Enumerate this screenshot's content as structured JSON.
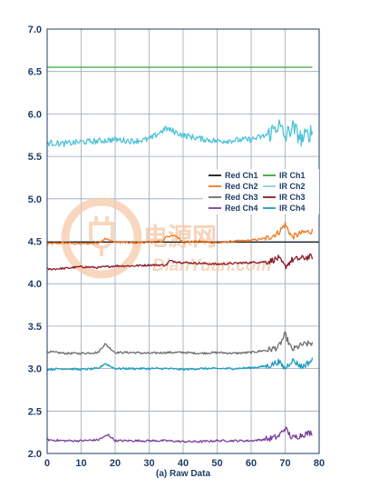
{
  "chart_data": {
    "type": "line",
    "title": "",
    "xlabel": "(a) Raw Data",
    "ylabel": "",
    "xlim": [
      0,
      80
    ],
    "ylim": [
      2.0,
      7.0
    ],
    "x_ticks": [
      "0",
      "10",
      "20",
      "30",
      "40",
      "50",
      "60",
      "70",
      "80"
    ],
    "y_ticks": [
      "2.0",
      "2.5",
      "3.0",
      "3.5",
      "4.0",
      "4.5",
      "5.0",
      "5.5",
      "6.0",
      "6.5",
      "7.0"
    ],
    "grid": true,
    "legend_position": "right",
    "legend": [
      "Red Ch1",
      "IR Ch1",
      "Red Ch2",
      "IR Ch2",
      "Red Ch3",
      "IR Ch3",
      "Red Ch4",
      "IR Ch4"
    ],
    "series": [
      {
        "name": "Red Ch1",
        "color": "#1a1a1a",
        "x": [
          0,
          80
        ],
        "y": [
          4.49,
          4.49
        ]
      },
      {
        "name": "IR Ch1",
        "color": "#3aa53a",
        "x": [
          0,
          78
        ],
        "y": [
          6.55,
          6.55
        ]
      },
      {
        "name": "Red Ch2",
        "color": "#f07820",
        "x": [
          0,
          5,
          10,
          15,
          17,
          20,
          25,
          30,
          34,
          35,
          38,
          40,
          45,
          50,
          55,
          60,
          65,
          68,
          70,
          72,
          75,
          78
        ],
        "y": [
          4.47,
          4.48,
          4.47,
          4.48,
          4.53,
          4.49,
          4.48,
          4.49,
          4.5,
          4.56,
          4.56,
          4.49,
          4.5,
          4.48,
          4.5,
          4.51,
          4.54,
          4.6,
          4.7,
          4.55,
          4.6,
          4.62
        ]
      },
      {
        "name": "IR Ch2",
        "color": "#8fd6cc",
        "x": [],
        "y": []
      },
      {
        "name": "Red Ch3",
        "color": "#6e6e6e",
        "x": [
          0,
          5,
          10,
          15,
          17,
          20,
          25,
          30,
          35,
          40,
          45,
          50,
          55,
          60,
          65,
          68,
          70,
          72,
          75,
          78
        ],
        "y": [
          3.2,
          3.18,
          3.18,
          3.19,
          3.29,
          3.19,
          3.19,
          3.18,
          3.19,
          3.19,
          3.18,
          3.19,
          3.18,
          3.19,
          3.22,
          3.25,
          3.4,
          3.22,
          3.28,
          3.3
        ]
      },
      {
        "name": "IR Ch3",
        "color": "#8b1a2b",
        "x": [
          0,
          5,
          10,
          15,
          20,
          25,
          30,
          35,
          36,
          40,
          45,
          50,
          55,
          60,
          65,
          68,
          70,
          72,
          75,
          78
        ],
        "y": [
          4.17,
          4.18,
          4.2,
          4.19,
          4.21,
          4.21,
          4.22,
          4.22,
          4.27,
          4.25,
          4.24,
          4.23,
          4.24,
          4.25,
          4.26,
          4.3,
          4.2,
          4.28,
          4.3,
          4.32
        ]
      },
      {
        "name": "Red Ch4",
        "color": "#7a3f98",
        "x": [
          0,
          5,
          10,
          15,
          18,
          20,
          25,
          30,
          35,
          40,
          45,
          50,
          55,
          60,
          65,
          68,
          70,
          72,
          75,
          78
        ],
        "y": [
          2.16,
          2.15,
          2.15,
          2.16,
          2.22,
          2.15,
          2.15,
          2.15,
          2.15,
          2.14,
          2.14,
          2.15,
          2.15,
          2.15,
          2.17,
          2.2,
          2.3,
          2.18,
          2.22,
          2.25
        ]
      },
      {
        "name": "IR Ch4",
        "color": "#1e9dbf",
        "x": [
          0,
          5,
          10,
          15,
          17,
          20,
          25,
          30,
          35,
          40,
          45,
          50,
          55,
          60,
          65,
          68,
          70,
          72,
          75,
          78
        ],
        "y": [
          2.99,
          3.0,
          2.99,
          3.0,
          3.06,
          3.0,
          3.0,
          3.0,
          3.0,
          2.99,
          3.0,
          3.0,
          3.0,
          3.01,
          3.03,
          3.08,
          3.0,
          3.1,
          3.02,
          3.1
        ]
      },
      {
        "name": "",
        "color": "#4fc3d9",
        "x": [
          0,
          5,
          10,
          15,
          20,
          25,
          30,
          35,
          40,
          45,
          50,
          55,
          60,
          65,
          68,
          70,
          72,
          75,
          78
        ],
        "y": [
          5.66,
          5.65,
          5.67,
          5.68,
          5.7,
          5.68,
          5.7,
          5.83,
          5.75,
          5.71,
          5.68,
          5.69,
          5.7,
          5.75,
          5.88,
          5.72,
          5.85,
          5.7,
          5.8
        ]
      }
    ]
  },
  "watermark": {
    "chinese": "电源网",
    "latin": "DianYuan.com"
  }
}
